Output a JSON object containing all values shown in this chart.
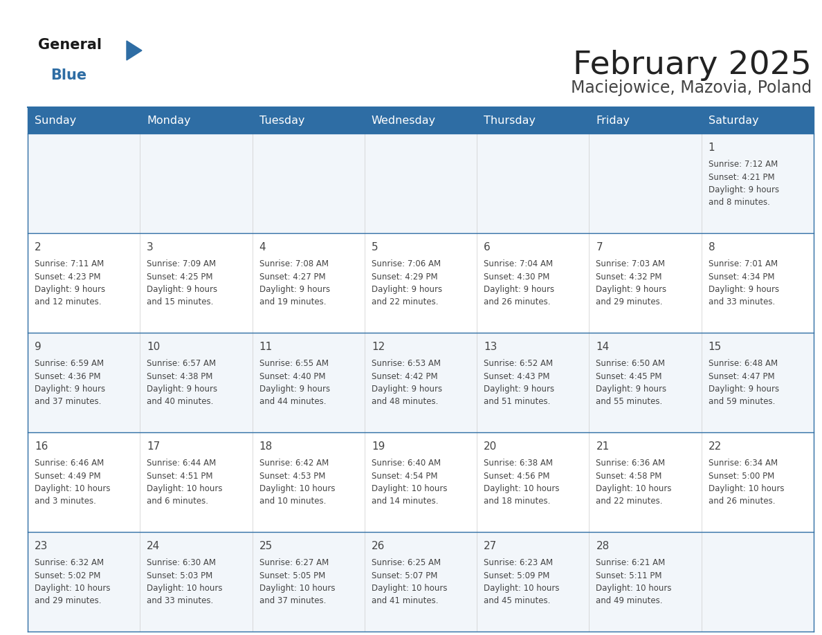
{
  "title": "February 2025",
  "subtitle": "Maciejowice, Mazovia, Poland",
  "days_of_week": [
    "Sunday",
    "Monday",
    "Tuesday",
    "Wednesday",
    "Thursday",
    "Friday",
    "Saturday"
  ],
  "header_bg": "#2e6da4",
  "header_text": "#ffffff",
  "row_bg_odd": "#f2f6fa",
  "row_bg_even": "#ffffff",
  "border_color": "#2e6da4",
  "text_color": "#444444",
  "title_color": "#222222",
  "subtitle_color": "#444444",
  "calendar_data": [
    [
      null,
      null,
      null,
      null,
      null,
      null,
      {
        "day": 1,
        "sunrise": "7:12 AM",
        "sunset": "4:21 PM",
        "daylight": "9 hours and 8 minutes."
      }
    ],
    [
      {
        "day": 2,
        "sunrise": "7:11 AM",
        "sunset": "4:23 PM",
        "daylight": "9 hours and 12 minutes."
      },
      {
        "day": 3,
        "sunrise": "7:09 AM",
        "sunset": "4:25 PM",
        "daylight": "9 hours and 15 minutes."
      },
      {
        "day": 4,
        "sunrise": "7:08 AM",
        "sunset": "4:27 PM",
        "daylight": "9 hours and 19 minutes."
      },
      {
        "day": 5,
        "sunrise": "7:06 AM",
        "sunset": "4:29 PM",
        "daylight": "9 hours and 22 minutes."
      },
      {
        "day": 6,
        "sunrise": "7:04 AM",
        "sunset": "4:30 PM",
        "daylight": "9 hours and 26 minutes."
      },
      {
        "day": 7,
        "sunrise": "7:03 AM",
        "sunset": "4:32 PM",
        "daylight": "9 hours and 29 minutes."
      },
      {
        "day": 8,
        "sunrise": "7:01 AM",
        "sunset": "4:34 PM",
        "daylight": "9 hours and 33 minutes."
      }
    ],
    [
      {
        "day": 9,
        "sunrise": "6:59 AM",
        "sunset": "4:36 PM",
        "daylight": "9 hours and 37 minutes."
      },
      {
        "day": 10,
        "sunrise": "6:57 AM",
        "sunset": "4:38 PM",
        "daylight": "9 hours and 40 minutes."
      },
      {
        "day": 11,
        "sunrise": "6:55 AM",
        "sunset": "4:40 PM",
        "daylight": "9 hours and 44 minutes."
      },
      {
        "day": 12,
        "sunrise": "6:53 AM",
        "sunset": "4:42 PM",
        "daylight": "9 hours and 48 minutes."
      },
      {
        "day": 13,
        "sunrise": "6:52 AM",
        "sunset": "4:43 PM",
        "daylight": "9 hours and 51 minutes."
      },
      {
        "day": 14,
        "sunrise": "6:50 AM",
        "sunset": "4:45 PM",
        "daylight": "9 hours and 55 minutes."
      },
      {
        "day": 15,
        "sunrise": "6:48 AM",
        "sunset": "4:47 PM",
        "daylight": "9 hours and 59 minutes."
      }
    ],
    [
      {
        "day": 16,
        "sunrise": "6:46 AM",
        "sunset": "4:49 PM",
        "daylight": "10 hours and 3 minutes."
      },
      {
        "day": 17,
        "sunrise": "6:44 AM",
        "sunset": "4:51 PM",
        "daylight": "10 hours and 6 minutes."
      },
      {
        "day": 18,
        "sunrise": "6:42 AM",
        "sunset": "4:53 PM",
        "daylight": "10 hours and 10 minutes."
      },
      {
        "day": 19,
        "sunrise": "6:40 AM",
        "sunset": "4:54 PM",
        "daylight": "10 hours and 14 minutes."
      },
      {
        "day": 20,
        "sunrise": "6:38 AM",
        "sunset": "4:56 PM",
        "daylight": "10 hours and 18 minutes."
      },
      {
        "day": 21,
        "sunrise": "6:36 AM",
        "sunset": "4:58 PM",
        "daylight": "10 hours and 22 minutes."
      },
      {
        "day": 22,
        "sunrise": "6:34 AM",
        "sunset": "5:00 PM",
        "daylight": "10 hours and 26 minutes."
      }
    ],
    [
      {
        "day": 23,
        "sunrise": "6:32 AM",
        "sunset": "5:02 PM",
        "daylight": "10 hours and 29 minutes."
      },
      {
        "day": 24,
        "sunrise": "6:30 AM",
        "sunset": "5:03 PM",
        "daylight": "10 hours and 33 minutes."
      },
      {
        "day": 25,
        "sunrise": "6:27 AM",
        "sunset": "5:05 PM",
        "daylight": "10 hours and 37 minutes."
      },
      {
        "day": 26,
        "sunrise": "6:25 AM",
        "sunset": "5:07 PM",
        "daylight": "10 hours and 41 minutes."
      },
      {
        "day": 27,
        "sunrise": "6:23 AM",
        "sunset": "5:09 PM",
        "daylight": "10 hours and 45 minutes."
      },
      {
        "day": 28,
        "sunrise": "6:21 AM",
        "sunset": "5:11 PM",
        "daylight": "10 hours and 49 minutes."
      },
      null
    ]
  ],
  "logo_color_general": "#1a1a1a",
  "logo_color_blue": "#2e6da4",
  "logo_triangle_color": "#2e6da4"
}
